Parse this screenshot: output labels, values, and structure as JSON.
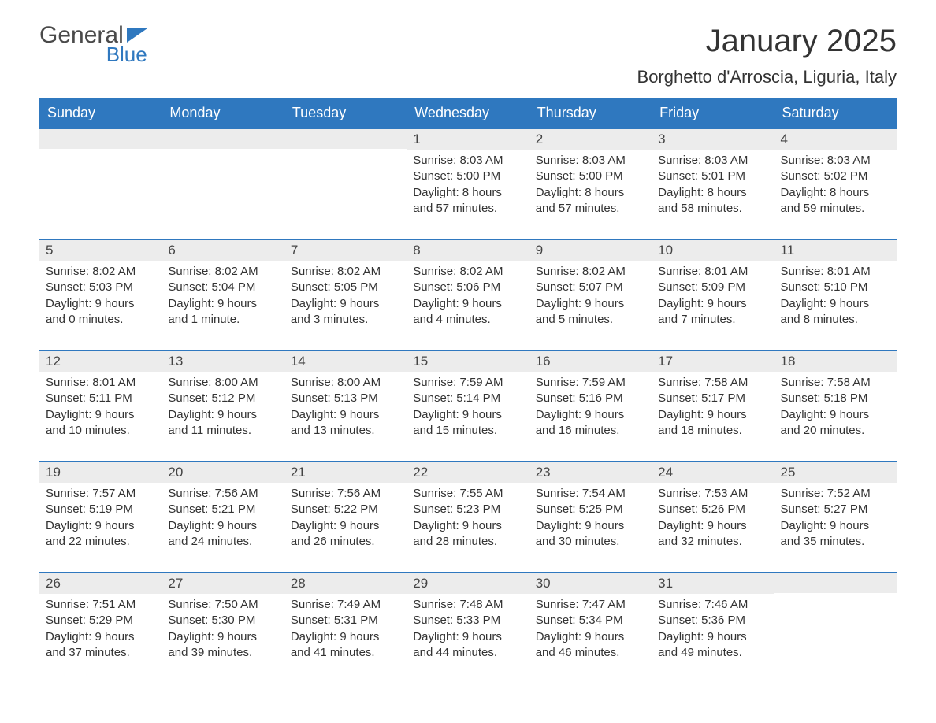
{
  "brand": {
    "name_part1": "General",
    "name_part2": "Blue",
    "text_color_dark": "#4a4a4a",
    "accent_color": "#2f78bf"
  },
  "header": {
    "month_year": "January 2025",
    "location": "Borghetto d'Arroscia, Liguria, Italy"
  },
  "calendar": {
    "type": "table",
    "background_color": "#ffffff",
    "header_bg": "#2f78bf",
    "header_fg": "#ffffff",
    "daynum_bg": "#ececec",
    "row_border_color": "#2f78bf",
    "body_font_size": 15,
    "header_font_size": 18,
    "day_headers": [
      "Sunday",
      "Monday",
      "Tuesday",
      "Wednesday",
      "Thursday",
      "Friday",
      "Saturday"
    ],
    "weeks": [
      [
        {
          "num": "",
          "lines": []
        },
        {
          "num": "",
          "lines": []
        },
        {
          "num": "",
          "lines": []
        },
        {
          "num": "1",
          "lines": [
            "Sunrise: 8:03 AM",
            "Sunset: 5:00 PM",
            "Daylight: 8 hours and 57 minutes."
          ]
        },
        {
          "num": "2",
          "lines": [
            "Sunrise: 8:03 AM",
            "Sunset: 5:00 PM",
            "Daylight: 8 hours and 57 minutes."
          ]
        },
        {
          "num": "3",
          "lines": [
            "Sunrise: 8:03 AM",
            "Sunset: 5:01 PM",
            "Daylight: 8 hours and 58 minutes."
          ]
        },
        {
          "num": "4",
          "lines": [
            "Sunrise: 8:03 AM",
            "Sunset: 5:02 PM",
            "Daylight: 8 hours and 59 minutes."
          ]
        }
      ],
      [
        {
          "num": "5",
          "lines": [
            "Sunrise: 8:02 AM",
            "Sunset: 5:03 PM",
            "Daylight: 9 hours and 0 minutes."
          ]
        },
        {
          "num": "6",
          "lines": [
            "Sunrise: 8:02 AM",
            "Sunset: 5:04 PM",
            "Daylight: 9 hours and 1 minute."
          ]
        },
        {
          "num": "7",
          "lines": [
            "Sunrise: 8:02 AM",
            "Sunset: 5:05 PM",
            "Daylight: 9 hours and 3 minutes."
          ]
        },
        {
          "num": "8",
          "lines": [
            "Sunrise: 8:02 AM",
            "Sunset: 5:06 PM",
            "Daylight: 9 hours and 4 minutes."
          ]
        },
        {
          "num": "9",
          "lines": [
            "Sunrise: 8:02 AM",
            "Sunset: 5:07 PM",
            "Daylight: 9 hours and 5 minutes."
          ]
        },
        {
          "num": "10",
          "lines": [
            "Sunrise: 8:01 AM",
            "Sunset: 5:09 PM",
            "Daylight: 9 hours and 7 minutes."
          ]
        },
        {
          "num": "11",
          "lines": [
            "Sunrise: 8:01 AM",
            "Sunset: 5:10 PM",
            "Daylight: 9 hours and 8 minutes."
          ]
        }
      ],
      [
        {
          "num": "12",
          "lines": [
            "Sunrise: 8:01 AM",
            "Sunset: 5:11 PM",
            "Daylight: 9 hours and 10 minutes."
          ]
        },
        {
          "num": "13",
          "lines": [
            "Sunrise: 8:00 AM",
            "Sunset: 5:12 PM",
            "Daylight: 9 hours and 11 minutes."
          ]
        },
        {
          "num": "14",
          "lines": [
            "Sunrise: 8:00 AM",
            "Sunset: 5:13 PM",
            "Daylight: 9 hours and 13 minutes."
          ]
        },
        {
          "num": "15",
          "lines": [
            "Sunrise: 7:59 AM",
            "Sunset: 5:14 PM",
            "Daylight: 9 hours and 15 minutes."
          ]
        },
        {
          "num": "16",
          "lines": [
            "Sunrise: 7:59 AM",
            "Sunset: 5:16 PM",
            "Daylight: 9 hours and 16 minutes."
          ]
        },
        {
          "num": "17",
          "lines": [
            "Sunrise: 7:58 AM",
            "Sunset: 5:17 PM",
            "Daylight: 9 hours and 18 minutes."
          ]
        },
        {
          "num": "18",
          "lines": [
            "Sunrise: 7:58 AM",
            "Sunset: 5:18 PM",
            "Daylight: 9 hours and 20 minutes."
          ]
        }
      ],
      [
        {
          "num": "19",
          "lines": [
            "Sunrise: 7:57 AM",
            "Sunset: 5:19 PM",
            "Daylight: 9 hours and 22 minutes."
          ]
        },
        {
          "num": "20",
          "lines": [
            "Sunrise: 7:56 AM",
            "Sunset: 5:21 PM",
            "Daylight: 9 hours and 24 minutes."
          ]
        },
        {
          "num": "21",
          "lines": [
            "Sunrise: 7:56 AM",
            "Sunset: 5:22 PM",
            "Daylight: 9 hours and 26 minutes."
          ]
        },
        {
          "num": "22",
          "lines": [
            "Sunrise: 7:55 AM",
            "Sunset: 5:23 PM",
            "Daylight: 9 hours and 28 minutes."
          ]
        },
        {
          "num": "23",
          "lines": [
            "Sunrise: 7:54 AM",
            "Sunset: 5:25 PM",
            "Daylight: 9 hours and 30 minutes."
          ]
        },
        {
          "num": "24",
          "lines": [
            "Sunrise: 7:53 AM",
            "Sunset: 5:26 PM",
            "Daylight: 9 hours and 32 minutes."
          ]
        },
        {
          "num": "25",
          "lines": [
            "Sunrise: 7:52 AM",
            "Sunset: 5:27 PM",
            "Daylight: 9 hours and 35 minutes."
          ]
        }
      ],
      [
        {
          "num": "26",
          "lines": [
            "Sunrise: 7:51 AM",
            "Sunset: 5:29 PM",
            "Daylight: 9 hours and 37 minutes."
          ]
        },
        {
          "num": "27",
          "lines": [
            "Sunrise: 7:50 AM",
            "Sunset: 5:30 PM",
            "Daylight: 9 hours and 39 minutes."
          ]
        },
        {
          "num": "28",
          "lines": [
            "Sunrise: 7:49 AM",
            "Sunset: 5:31 PM",
            "Daylight: 9 hours and 41 minutes."
          ]
        },
        {
          "num": "29",
          "lines": [
            "Sunrise: 7:48 AM",
            "Sunset: 5:33 PM",
            "Daylight: 9 hours and 44 minutes."
          ]
        },
        {
          "num": "30",
          "lines": [
            "Sunrise: 7:47 AM",
            "Sunset: 5:34 PM",
            "Daylight: 9 hours and 46 minutes."
          ]
        },
        {
          "num": "31",
          "lines": [
            "Sunrise: 7:46 AM",
            "Sunset: 5:36 PM",
            "Daylight: 9 hours and 49 minutes."
          ]
        },
        {
          "num": "",
          "lines": []
        }
      ]
    ]
  }
}
